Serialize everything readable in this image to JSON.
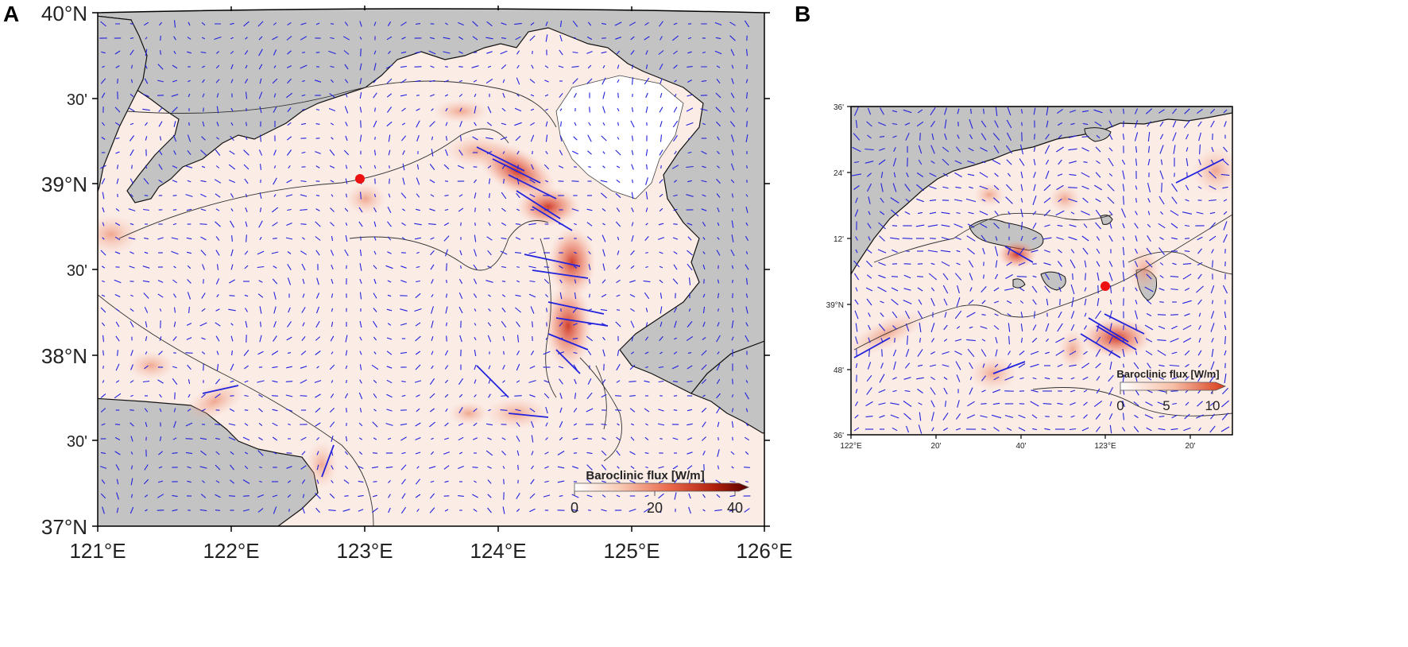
{
  "figure": {
    "panel_a_label": "A",
    "panel_b_label": "B"
  },
  "panel_a": {
    "lat_ticks": [
      "40°N",
      "30'",
      "39°N",
      "30'",
      "38°N",
      "30'",
      "37°N"
    ],
    "lon_ticks": [
      "121°E",
      "122°E",
      "123°E",
      "124°E",
      "125°E",
      "126°E"
    ],
    "colorbar": {
      "title": "Baroclinic flux [W/m]",
      "ticks": [
        "0",
        "20",
        "40"
      ],
      "range": [
        0,
        40
      ],
      "colors": [
        "#ffffff",
        "#e8684a",
        "#5a0000"
      ]
    },
    "station_color": "#ee1111"
  },
  "panel_b": {
    "lat_ticks": [
      "36'",
      "24'",
      "12'",
      "39°N",
      "48'",
      "36'"
    ],
    "lon_ticks": [
      "122°E",
      "20'",
      "40'",
      "123°E",
      "20'"
    ],
    "colorbar": {
      "title": "Baroclinic flux [W/m]",
      "ticks": [
        "0",
        "5",
        "10"
      ],
      "range": [
        0,
        10
      ],
      "colors": [
        "#ffffff",
        "#f0a080",
        "#d83a1a"
      ]
    },
    "station_color": "#ee1111"
  },
  "colors": {
    "land": "#c3c3c3",
    "sea": "#fbece6",
    "arrows": "#2222dd",
    "coast": "#111111"
  }
}
